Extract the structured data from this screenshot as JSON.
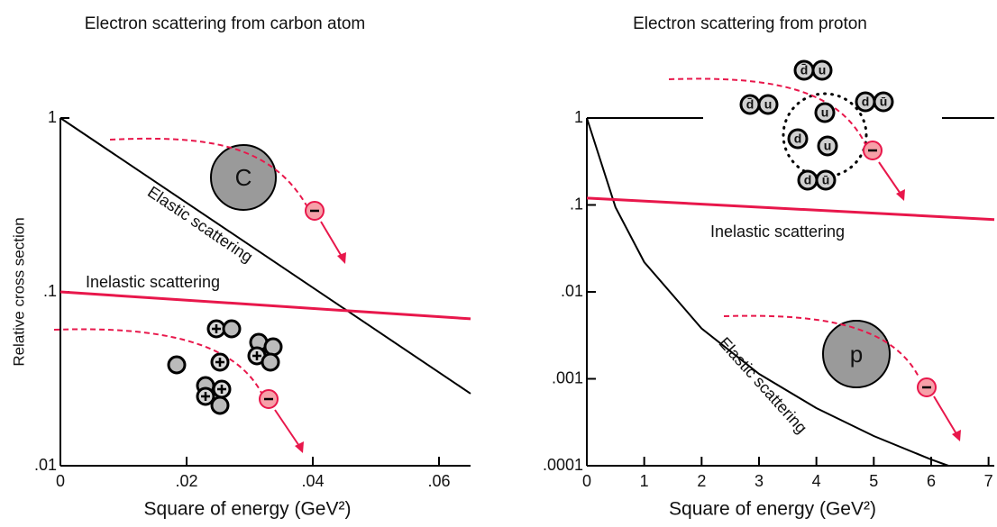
{
  "chart_data": [
    {
      "type": "line",
      "title": "Electron scattering from carbon atom",
      "xlabel": "Square of energy (GeV²)",
      "ylabel": "Relative cross section",
      "xlim": [
        0,
        0.065
      ],
      "xticks": [
        0,
        {
          "value": 0.02,
          "label": ".02"
        },
        {
          "value": 0.04,
          "label": ".04"
        },
        {
          "value": 0.06,
          "label": ".06"
        }
      ],
      "ylim": [
        0.01,
        1
      ],
      "yticks": [
        {
          "value": 0.01,
          "label": ".01"
        },
        {
          "value": 0.1,
          "label": ".1"
        },
        1
      ],
      "log_y": true,
      "series": [
        {
          "name": "Elastic scattering",
          "color": "#000000",
          "x": [
            0,
            0.065
          ],
          "values": [
            1,
            0.026
          ]
        },
        {
          "name": "Inelastic scattering",
          "color": "#e8174b",
          "x": [
            0,
            0.065
          ],
          "values": [
            0.1,
            0.07
          ]
        }
      ],
      "nucleus": "C"
    },
    {
      "type": "line",
      "title": "Electron scattering from proton",
      "xlabel": "Square of energy (GeV²)",
      "xlim": [
        0,
        7.1
      ],
      "xticks": [
        0,
        1,
        2,
        3,
        4,
        5,
        6,
        7
      ],
      "ylim": [
        0.0001,
        1
      ],
      "yticks": [
        {
          "value": 0.0001,
          "label": ".0001"
        },
        {
          "value": 0.001,
          "label": ".001"
        },
        {
          "value": 0.01,
          "label": ".01"
        },
        {
          "value": 0.1,
          "label": ".1"
        },
        1
      ],
      "log_y": true,
      "series": [
        {
          "name": "Elastic scattering",
          "color": "#000000",
          "x": [
            0,
            0.5,
            1,
            2,
            3,
            4,
            5,
            6,
            6.3
          ],
          "values": [
            1,
            0.094,
            0.022,
            0.0038,
            0.00114,
            0.00046,
            0.00022,
            0.000118,
            0.0001
          ]
        },
        {
          "name": "Inelastic scattering",
          "color": "#e8174b",
          "x": [
            0,
            7.1
          ],
          "values": [
            0.12,
            0.068
          ]
        }
      ],
      "nucleus": "p",
      "quarks": [
        "d̄",
        "u",
        "d̄",
        "u",
        "d",
        "ū",
        "u",
        "d",
        "u",
        "d",
        "ū"
      ]
    }
  ]
}
